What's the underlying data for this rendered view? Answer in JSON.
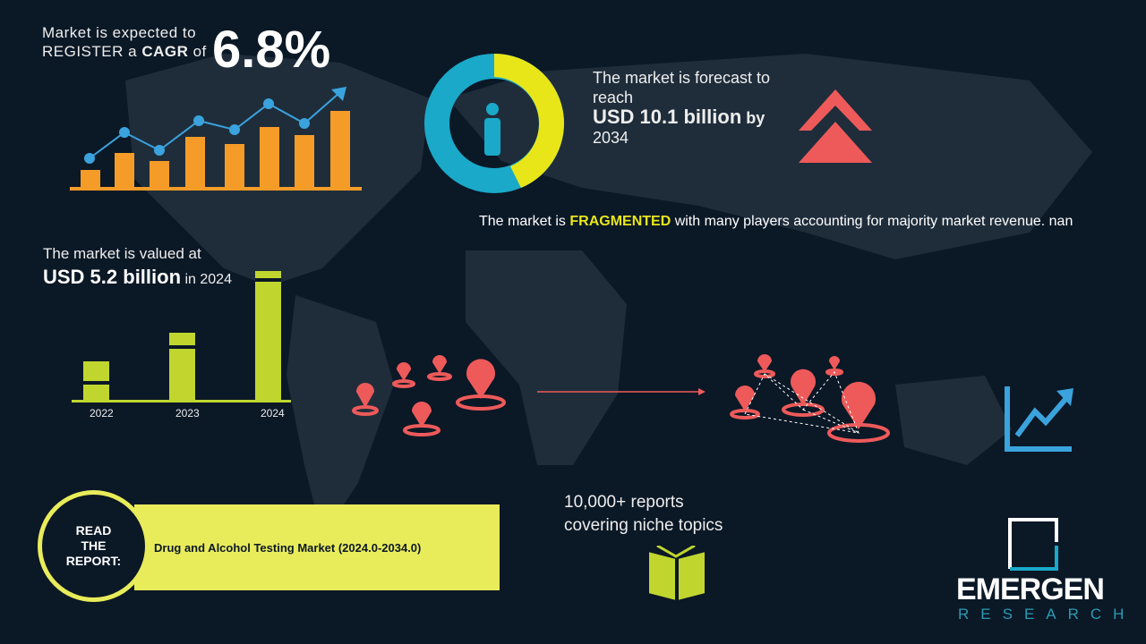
{
  "cagr": {
    "line1": "Market is expected to",
    "line2_prefix": "REGISTER a ",
    "line2_bold": "CAGR",
    "line2_suffix": " of",
    "value": "6.8%"
  },
  "forecast": {
    "line1": "The market is forecast to reach",
    "value": "USD 10.1 billion",
    "by": " by",
    "year": "2034"
  },
  "fragmented": {
    "prefix": "The market is ",
    "highlight": "FRAGMENTED",
    "suffix": " with many players accounting for majority market revenue. nan"
  },
  "valued": {
    "line1": "The market is valued at",
    "value": "USD 5.2 billion",
    "suffix": " in 2024"
  },
  "years": [
    "2022",
    "2023",
    "2024"
  ],
  "reports": {
    "line1": "10,000+ reports",
    "line2": "covering niche topics"
  },
  "read": {
    "label": "READ THE REPORT:",
    "title": "Drug and Alcohol Testing Market (2024.0-2034.0)"
  },
  "logo": {
    "name": "EMERGEN",
    "sub": "RESEARCH"
  },
  "colors": {
    "background": "#0b1826",
    "orange": "#f59c28",
    "blue": "#3aa3dd",
    "yellow": "#e8e619",
    "lime": "#c0d62f",
    "red": "#ee5a5a",
    "teal": "#1aa9c9"
  }
}
